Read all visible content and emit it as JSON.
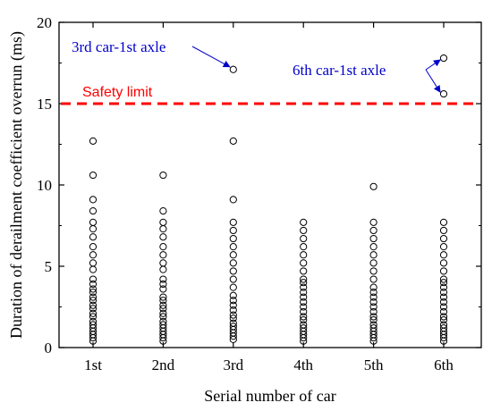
{
  "chart_data": {
    "type": "scatter",
    "title": "",
    "xlabel": "Serial number of car",
    "ylabel": "Duration of derailment coefficient overrun (ms)",
    "categories": [
      "1st",
      "2nd",
      "3rd",
      "4th",
      "5th",
      "6th"
    ],
    "ylim": [
      0,
      20
    ],
    "yticks": [
      0,
      5,
      10,
      15,
      20
    ],
    "grid": false,
    "marker": "open-circle",
    "series": [
      {
        "category": "1st",
        "values": [
          12.7,
          10.6,
          9.1,
          8.4,
          7.7,
          7.3,
          6.8,
          6.2,
          5.7,
          5.2,
          4.8,
          4.2,
          3.9,
          3.6,
          3.4,
          3.1,
          2.9,
          2.6,
          2.4,
          2.1,
          1.9,
          1.6,
          1.4,
          1.2,
          1.0,
          0.8,
          0.6,
          0.4
        ]
      },
      {
        "category": "2nd",
        "values": [
          10.6,
          8.4,
          7.7,
          7.3,
          6.8,
          6.2,
          5.7,
          5.2,
          4.8,
          4.2,
          3.9,
          3.6,
          3.1,
          2.9,
          2.6,
          2.4,
          2.1,
          1.9,
          1.6,
          1.4,
          1.2,
          1.0,
          0.8,
          0.6,
          0.4
        ]
      },
      {
        "category": "3rd",
        "values": [
          17.1,
          12.7,
          9.1,
          7.7,
          7.2,
          6.7,
          6.2,
          5.7,
          5.2,
          4.7,
          4.2,
          3.7,
          3.2,
          2.9,
          2.6,
          2.3,
          2.0,
          1.8,
          1.5,
          1.3,
          1.1,
          0.9,
          0.7,
          0.5
        ]
      },
      {
        "category": "4th",
        "values": [
          7.7,
          7.2,
          6.7,
          6.2,
          5.7,
          5.2,
          4.7,
          4.2,
          4.0,
          3.7,
          3.4,
          3.1,
          2.8,
          2.5,
          2.2,
          1.9,
          1.7,
          1.4,
          1.2,
          1.0,
          0.8,
          0.6,
          0.4
        ]
      },
      {
        "category": "5th",
        "values": [
          9.9,
          7.7,
          7.2,
          6.7,
          6.2,
          5.7,
          5.2,
          4.7,
          4.2,
          3.7,
          3.4,
          3.1,
          2.8,
          2.5,
          2.2,
          1.9,
          1.7,
          1.4,
          1.2,
          1.0,
          0.8,
          0.6,
          0.4
        ]
      },
      {
        "category": "6th",
        "values": [
          17.8,
          15.6,
          7.7,
          7.2,
          6.7,
          6.2,
          5.7,
          5.2,
          4.7,
          4.2,
          4.0,
          3.7,
          3.4,
          3.1,
          2.8,
          2.5,
          2.2,
          1.9,
          1.7,
          1.4,
          1.2,
          1.0,
          0.8,
          0.6,
          0.4
        ]
      }
    ],
    "reference_line": {
      "y": 15,
      "label": "Safety limit",
      "color": "#ff0000",
      "style": "dashed"
    },
    "annotations": [
      {
        "text": "3rd car-1st axle",
        "color": "#0000cc",
        "targets": [
          {
            "category": "3rd",
            "y": 17.1
          }
        ]
      },
      {
        "text": "6th car-1st axle",
        "color": "#0000cc",
        "targets": [
          {
            "category": "6th",
            "y": 17.8
          },
          {
            "category": "6th",
            "y": 15.6
          }
        ]
      }
    ],
    "colors": {
      "marker_stroke": "#000000",
      "axis": "#000000",
      "annotation": "#0000cc",
      "limit": "#ff0000"
    }
  }
}
